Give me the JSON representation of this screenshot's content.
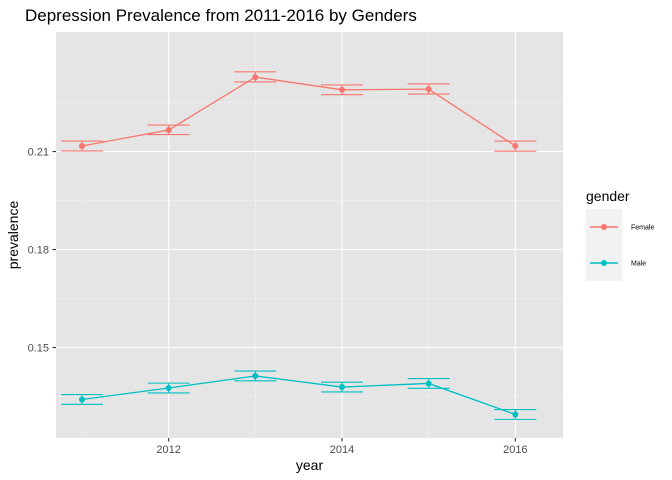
{
  "chart_data": {
    "type": "line",
    "title": "Depression Prevalence from 2011-2016 by Genders",
    "xlabel": "year",
    "ylabel": "prevalence",
    "x": [
      2011,
      2012,
      2013,
      2014,
      2015,
      2016
    ],
    "xticks": [
      "2012",
      "2014",
      "2016"
    ],
    "yticks": [
      "0.15",
      "0.18",
      "0.21"
    ],
    "xlim": [
      2010.7,
      2016.55
    ],
    "ylim": [
      0.1223,
      0.2466
    ],
    "grid": true,
    "legend": {
      "title": "gender",
      "position": "right"
    },
    "series": [
      {
        "name": "Female",
        "color": "#f8766d",
        "values": [
          0.2117,
          0.2166,
          0.2328,
          0.2289,
          0.2291,
          0.2117
        ],
        "error_lower": [
          0.2102,
          0.2152,
          0.2313,
          0.2274,
          0.2276,
          0.2101
        ],
        "error_upper": [
          0.2132,
          0.2181,
          0.2344,
          0.2304,
          0.2307,
          0.2132
        ]
      },
      {
        "name": "Male",
        "color": "#00bfc4",
        "values": [
          0.1341,
          0.1376,
          0.1413,
          0.1379,
          0.139,
          0.1295
        ],
        "error_lower": [
          0.1326,
          0.1361,
          0.1398,
          0.1364,
          0.1375,
          0.128
        ],
        "error_upper": [
          0.1356,
          0.1391,
          0.1428,
          0.1394,
          0.1405,
          0.131
        ]
      }
    ]
  }
}
